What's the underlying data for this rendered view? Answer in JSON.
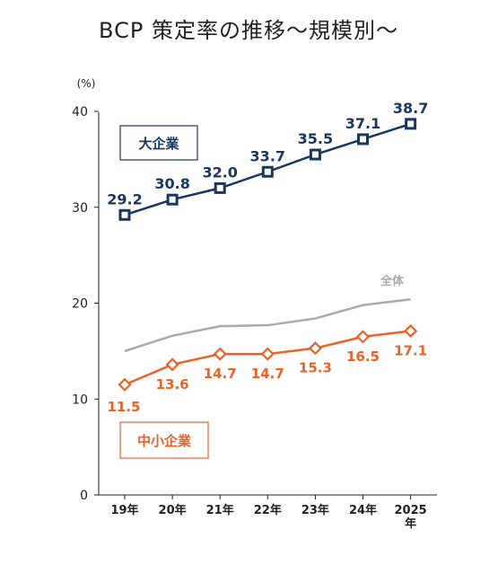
{
  "chart_data": {
    "type": "line",
    "title": "BCP 策定率の推移～規模別～",
    "ylabel": "(%)",
    "ylim": [
      0,
      40
    ],
    "yticks": [
      "0",
      "10",
      "20",
      "30",
      "40"
    ],
    "categories": [
      "19年",
      "20年",
      "21年",
      "22年",
      "23年",
      "24年",
      "2025年"
    ],
    "series": [
      {
        "name": "大企業",
        "values": [
          29.2,
          30.8,
          32.0,
          33.7,
          35.5,
          37.1,
          38.7
        ],
        "labels": [
          "29.2",
          "30.8",
          "32.0",
          "33.7",
          "35.5",
          "37.1",
          "38.7"
        ],
        "color": "#17375e",
        "marker": "square"
      },
      {
        "name": "全体",
        "values": [
          15.0,
          16.6,
          17.6,
          17.7,
          18.4,
          19.8,
          20.4
        ],
        "color": "#aaaaaa",
        "marker": "none"
      },
      {
        "name": "中小企業",
        "values": [
          11.5,
          13.6,
          14.7,
          14.7,
          15.3,
          16.5,
          17.1
        ],
        "labels": [
          "11.5",
          "13.6",
          "14.7",
          "14.7",
          "15.3",
          "16.5",
          "17.1"
        ],
        "color": "#e8622a",
        "marker": "diamond"
      }
    ],
    "grid": false
  }
}
